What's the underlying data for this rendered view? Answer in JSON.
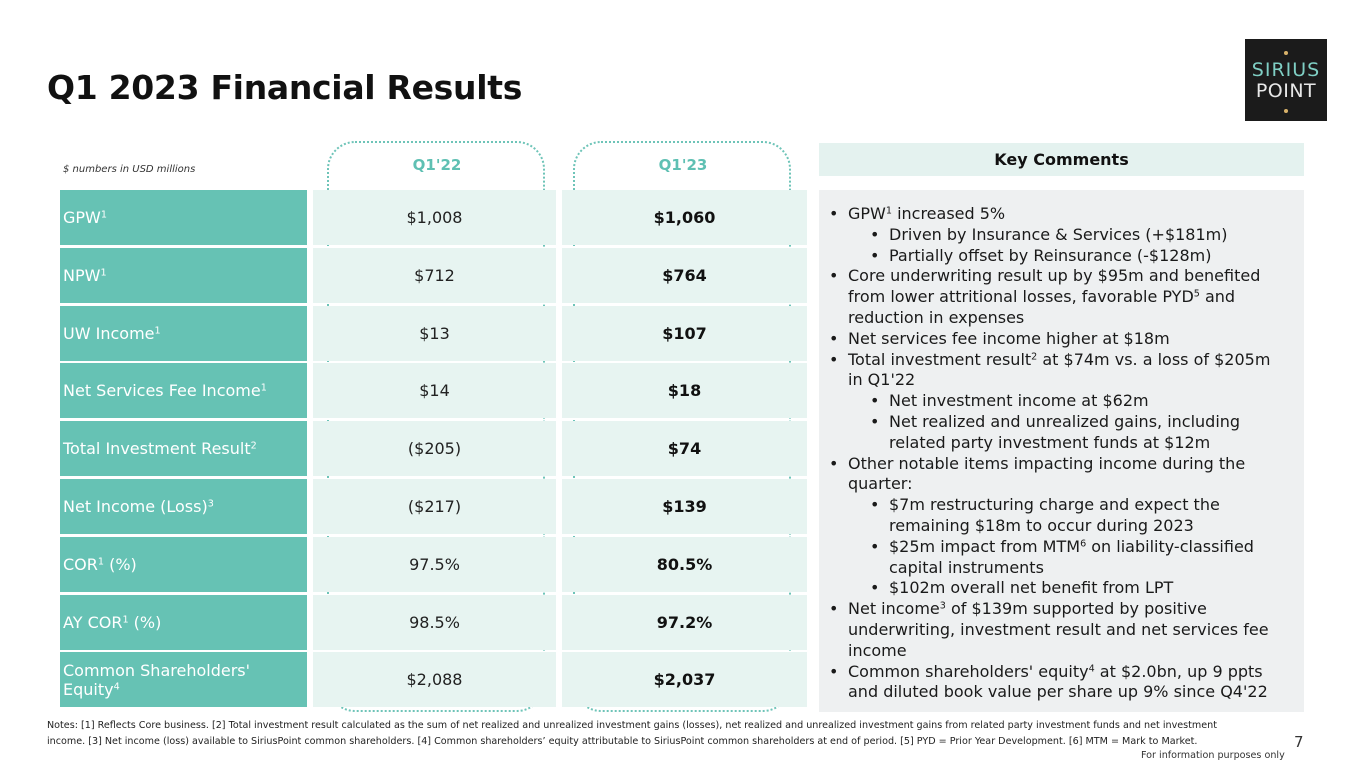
{
  "title": "Q1 2023 Financial Results",
  "logo": {
    "line1": "SIRIUS",
    "line2": "POINT"
  },
  "units_note": "$ numbers in USD millions",
  "columns": [
    "Q1'22",
    "Q1'23"
  ],
  "rows": [
    {
      "label": "GPW",
      "sup": "1",
      "suffix": "",
      "q1_22": "$1,008",
      "q1_23": "$1,060"
    },
    {
      "label": "NPW",
      "sup": "1",
      "suffix": "",
      "q1_22": "$712",
      "q1_23": "$764"
    },
    {
      "label": "UW Income",
      "sup": "1",
      "suffix": "",
      "q1_22": "$13",
      "q1_23": "$107"
    },
    {
      "label": "Net Services Fee Income",
      "sup": "1",
      "suffix": "",
      "q1_22": "$14",
      "q1_23": "$18"
    },
    {
      "label": "Total Investment Result",
      "sup": "2",
      "suffix": "",
      "q1_22": "($205)",
      "q1_23": "$74"
    },
    {
      "label": "Net Income (Loss)",
      "sup": "3",
      "suffix": "",
      "q1_22": "($217)",
      "q1_23": "$139"
    },
    {
      "label": "COR",
      "sup": "1",
      "suffix": " (%)",
      "q1_22": "97.5%",
      "q1_23": "80.5%"
    },
    {
      "label": "AY COR",
      "sup": "1",
      "suffix": " (%)",
      "q1_22": "98.5%",
      "q1_23": "97.2%"
    },
    {
      "label": "Common Shareholders' Equity",
      "sup": "4",
      "suffix": "",
      "q1_22": "$2,088",
      "q1_23": "$2,037"
    }
  ],
  "key_comments": {
    "heading": "Key Comments",
    "items": [
      {
        "level": 1,
        "parts": [
          "GPW",
          "1",
          " increased 5%"
        ]
      },
      {
        "level": 2,
        "parts": [
          "Driven by Insurance & Services (+$181m)"
        ]
      },
      {
        "level": 2,
        "parts": [
          "Partially offset by Reinsurance (-$128m)"
        ]
      },
      {
        "level": 1,
        "parts": [
          "Core underwriting result up by $95m and benefited from lower attritional losses, favorable PYD",
          "5",
          " and reduction in expenses"
        ]
      },
      {
        "level": 1,
        "parts": [
          "Net services fee income higher at $18m"
        ]
      },
      {
        "level": 1,
        "parts": [
          "Total investment result",
          "2",
          " at $74m vs. a loss of $205m in Q1'22"
        ]
      },
      {
        "level": 2,
        "parts": [
          "Net investment income at $62m"
        ]
      },
      {
        "level": 2,
        "parts": [
          "Net realized and unrealized gains, including related party investment funds at $12m"
        ]
      },
      {
        "level": 1,
        "parts": [
          "Other notable items impacting income during the quarter:"
        ]
      },
      {
        "level": 2,
        "parts": [
          "$7m restructuring charge and expect the remaining $18m to occur during 2023"
        ]
      },
      {
        "level": 2,
        "parts": [
          "$25m impact from MTM",
          "6",
          " on liability-classified capital instruments"
        ]
      },
      {
        "level": 2,
        "parts": [
          "$102m overall net benefit from LPT"
        ]
      },
      {
        "level": 1,
        "parts": [
          "Net income",
          "3",
          " of $139m supported by positive underwriting, investment result and net services fee income"
        ]
      },
      {
        "level": 1,
        "parts": [
          "Common shareholders' equity",
          "4",
          " at $2.0bn, up 9 ppts and diluted book value per share up 9% since Q4'22"
        ]
      }
    ]
  },
  "notes": "Notes: [1] Reflects Core business. [2] Total investment result calculated as the sum of net realized and unrealized investment gains (losses), net realized and unrealized investment gains from related party investment funds and net investment income. [3] Net income (loss) available to SiriusPoint common shareholders. [4] Common shareholders’ equity attributable to SiriusPoint common shareholders at end of period. [5] PYD = Prior Year Development. [6] MTM = Mark to Market.",
  "page_number": "7",
  "info_note": "For information purposes only"
}
